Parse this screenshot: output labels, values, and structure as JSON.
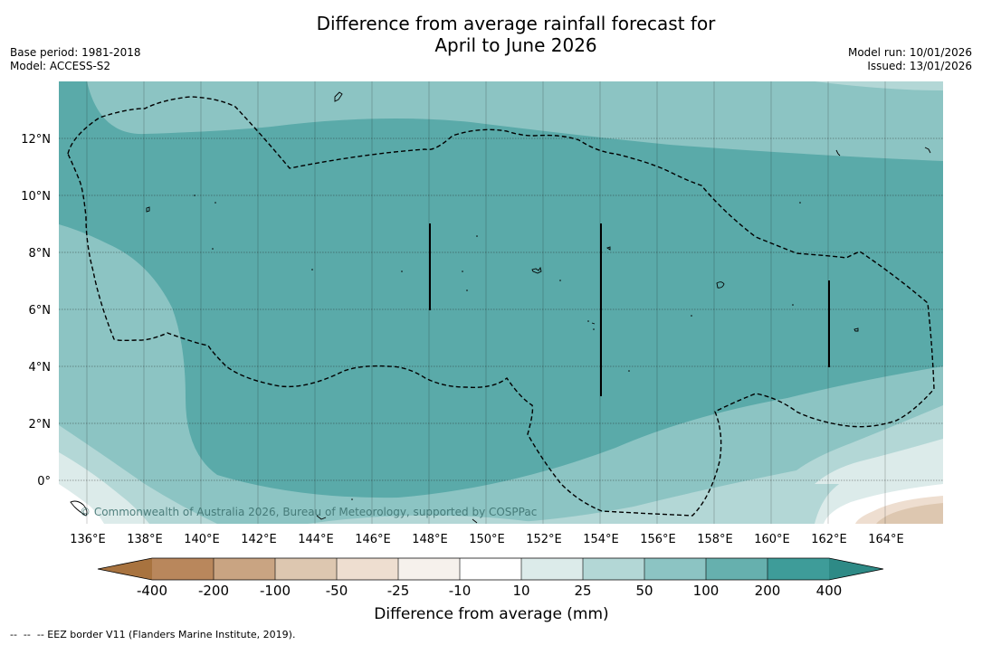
{
  "title": {
    "line1": "Difference from average rainfall forecast for",
    "line2": "April to June 2026"
  },
  "meta": {
    "base_period": "Base period: 1981-2018",
    "model": "Model: ACCESS-S2",
    "model_run": "Model run: 10/01/2026",
    "issued": "Issued: 13/01/2026"
  },
  "map": {
    "lon_ticks": [
      "136°E",
      "138°E",
      "140°E",
      "142°E",
      "144°E",
      "146°E",
      "148°E",
      "150°E",
      "152°E",
      "154°E",
      "156°E",
      "158°E",
      "160°E",
      "162°E",
      "164°E"
    ],
    "lat_ticks": [
      "12°N",
      "10°N",
      "8°N",
      "6°N",
      "4°N",
      "2°N",
      "0°"
    ],
    "copyright": "© Commonwealth of Australia 2026, Bureau of Meteorology, supported by COSPPac"
  },
  "colorbar": {
    "labels": [
      "-400",
      "-200",
      "-100",
      "-50",
      "-25",
      "-10",
      "10",
      "25",
      "50",
      "100",
      "200",
      "400"
    ],
    "colors": [
      "#a8733f",
      "#b9875c",
      "#c9a482",
      "#ddc7b0",
      "#eeded0",
      "#f6f1ec",
      "#ffffff",
      "#dcebea",
      "#b3d7d6",
      "#8cc4c3",
      "#66b0ae",
      "#3e9c99",
      "#2e8a86"
    ],
    "label": "Difference from average (mm)"
  },
  "footnote": "--  --  -- EEZ border V11 (Flanders Marine Institute, 2019)."
}
